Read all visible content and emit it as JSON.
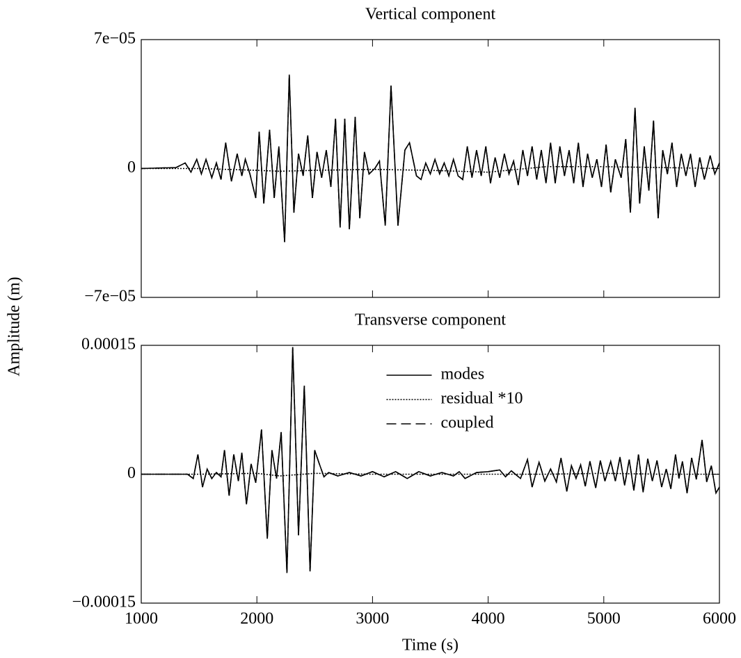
{
  "chart_data": [
    {
      "type": "line",
      "title": "Vertical component",
      "x": [
        1000,
        1300,
        1380,
        1430,
        1480,
        1520,
        1560,
        1610,
        1650,
        1690,
        1730,
        1780,
        1830,
        1870,
        1900,
        1940,
        1990,
        2020,
        2060,
        2110,
        2150,
        2190,
        2240,
        2280,
        2320,
        2360,
        2400,
        2440,
        2480,
        2520,
        2560,
        2600,
        2640,
        2680,
        2720,
        2760,
        2800,
        2850,
        2890,
        2930,
        2970,
        3020,
        3060,
        3110,
        3160,
        3220,
        3280,
        3320,
        3380,
        3420,
        3460,
        3500,
        3540,
        3580,
        3620,
        3660,
        3700,
        3740,
        3780,
        3820,
        3860,
        3900,
        3940,
        3980,
        4020,
        4060,
        4100,
        4140,
        4180,
        4220,
        4260,
        4300,
        4340,
        4380,
        4420,
        4460,
        4500,
        4540,
        4580,
        4620,
        4660,
        4700,
        4740,
        4780,
        4820,
        4860,
        4900,
        4940,
        4980,
        5020,
        5060,
        5100,
        5150,
        5190,
        5230,
        5270,
        5310,
        5350,
        5390,
        5430,
        5470,
        5510,
        5550,
        5590,
        5630,
        5670,
        5710,
        5750,
        5790,
        5830,
        5870,
        5920,
        5960,
        6000
      ],
      "series": [
        {
          "name": "modes",
          "color": "#000000",
          "linestyle": "solid",
          "values": [
            0,
            5e-07,
            3e-06,
            -2e-06,
            5e-06,
            -3e-06,
            5e-06,
            -5e-06,
            3e-06,
            -6e-06,
            1.4e-05,
            -7e-06,
            8e-06,
            -4e-06,
            5e-06,
            -3e-06,
            -1.6e-05,
            2e-05,
            -1.9e-05,
            2.1e-05,
            -1.6e-05,
            1.2e-05,
            -4e-05,
            5.1e-05,
            -2.4e-05,
            8e-06,
            -4e-06,
            1.8e-05,
            -1.6e-05,
            9e-06,
            -5e-06,
            1e-05,
            -1e-05,
            2.7e-05,
            -3.2e-05,
            2.7e-05,
            -3.3e-05,
            2.8e-05,
            -2.7e-05,
            9e-06,
            -3e-06,
            0,
            4e-06,
            -3.1e-05,
            4.5e-05,
            -3.1e-05,
            1e-05,
            1.4e-05,
            -4e-06,
            -6e-06,
            3e-06,
            -3e-06,
            5e-06,
            -3e-06,
            3e-06,
            -4e-06,
            5e-06,
            -4e-06,
            -6e-06,
            1.2e-05,
            -5e-06,
            1e-05,
            -4e-06,
            1.2e-05,
            -8e-06,
            6e-06,
            -5e-06,
            8e-06,
            -3e-06,
            4e-06,
            -9e-06,
            1e-05,
            -4e-06,
            1.2e-05,
            -6e-06,
            1e-05,
            -8e-06,
            1.4e-05,
            -8e-06,
            1.2e-05,
            -4e-06,
            1e-05,
            -8e-06,
            1.4e-05,
            -1e-05,
            8e-06,
            -5e-06,
            5e-06,
            -1e-05,
            1.3e-05,
            -1.3e-05,
            5e-06,
            -5e-06,
            1.6e-05,
            -2.4e-05,
            3.3e-05,
            -1.9e-05,
            1.2e-05,
            -1.2e-05,
            2.6e-05,
            -2.7e-05,
            1e-05,
            -3e-06,
            1.4e-05,
            -1e-05,
            8e-06,
            -4e-06,
            8e-06,
            -1e-05,
            6e-06,
            -6e-06,
            7e-06,
            -3e-06,
            3e-06
          ]
        },
        {
          "name": "residual *10",
          "color": "#000000",
          "linestyle": "dotted",
          "x": [
            1000,
            1500,
            2000,
            2200,
            2500,
            3000,
            3500,
            4000,
            4500,
            5000,
            5500,
            6000
          ],
          "values": [
            0,
            0,
            -1e-06,
            -1.5e-06,
            -1e-06,
            -5e-07,
            -1e-06,
            -2e-06,
            1e-06,
            1e-06,
            5e-07,
            0
          ]
        },
        {
          "name": "coupled",
          "color": "#000000",
          "linestyle": "dashed",
          "values": [
            0,
            5e-07,
            3e-06,
            -2e-06,
            5e-06,
            -3e-06,
            5e-06,
            -5e-06,
            3e-06,
            -6e-06,
            1.4e-05,
            -7e-06,
            8e-06,
            -4e-06,
            5e-06,
            -3e-06,
            -1.6e-05,
            2e-05,
            -1.9e-05,
            2.1e-05,
            -1.6e-05,
            1.2e-05,
            -4e-05,
            5.1e-05,
            -2.4e-05,
            8e-06,
            -4e-06,
            1.8e-05,
            -1.6e-05,
            9e-06,
            -5e-06,
            1e-05,
            -1e-05,
            2.7e-05,
            -3.2e-05,
            2.7e-05,
            -3.3e-05,
            2.8e-05,
            -2.7e-05,
            9e-06,
            -3e-06,
            0,
            4e-06,
            -3.1e-05,
            4.5e-05,
            -3.1e-05,
            1e-05,
            1.4e-05,
            -4e-06,
            -6e-06,
            3e-06,
            -3e-06,
            5e-06,
            -3e-06,
            3e-06,
            -4e-06,
            5e-06,
            -4e-06,
            -6e-06,
            1.2e-05,
            -5e-06,
            1e-05,
            -4e-06,
            1.2e-05,
            -8e-06,
            6e-06,
            -5e-06,
            8e-06,
            -3e-06,
            4e-06,
            -9e-06,
            1e-05,
            -4e-06,
            1.2e-05,
            -6e-06,
            1e-05,
            -8e-06,
            1.4e-05,
            -8e-06,
            1.2e-05,
            -4e-06,
            1e-05,
            -8e-06,
            1.4e-05,
            -1e-05,
            8e-06,
            -5e-06,
            5e-06,
            -1e-05,
            1.3e-05,
            -1.3e-05,
            5e-06,
            -5e-06,
            1.6e-05,
            -2.4e-05,
            3.3e-05,
            -1.9e-05,
            1.2e-05,
            -1.2e-05,
            2.6e-05,
            -2.7e-05,
            1e-05,
            -3e-06,
            1.4e-05,
            -1e-05,
            8e-06,
            -4e-06,
            8e-06,
            -1e-05,
            6e-06,
            -6e-06,
            7e-06,
            -3e-06,
            3e-06
          ]
        }
      ],
      "xlim": [
        1000,
        6000
      ],
      "xticks": [
        1000,
        2000,
        3000,
        4000,
        5000,
        6000
      ],
      "xtick_labels": false,
      "ylim": [
        -7e-05,
        7e-05
      ],
      "yticks": [
        {
          "value": 7e-05,
          "label": "7e−05"
        },
        0,
        {
          "value": -7e-05,
          "label": "−7e−05"
        }
      ]
    },
    {
      "type": "line",
      "title": "Transverse component",
      "xlabel": "Time (s)",
      "ylabel": "Amplitude (m)",
      "x": [
        1000,
        1400,
        1450,
        1490,
        1530,
        1570,
        1610,
        1650,
        1690,
        1720,
        1760,
        1800,
        1840,
        1870,
        1910,
        1950,
        1990,
        2040,
        2090,
        2130,
        2170,
        2210,
        2260,
        2310,
        2360,
        2410,
        2460,
        2500,
        2540,
        2580,
        2620,
        2700,
        2800,
        2900,
        3000,
        3100,
        3200,
        3300,
        3400,
        3500,
        3600,
        3700,
        3750,
        3800,
        3900,
        4000,
        4100,
        4150,
        4200,
        4280,
        4340,
        4380,
        4440,
        4490,
        4540,
        4590,
        4630,
        4680,
        4720,
        4760,
        4800,
        4840,
        4880,
        4930,
        4970,
        5010,
        5060,
        5100,
        5140,
        5180,
        5220,
        5260,
        5300,
        5340,
        5380,
        5420,
        5460,
        5500,
        5540,
        5580,
        5620,
        5650,
        5680,
        5720,
        5760,
        5800,
        5850,
        5890,
        5930,
        5970,
        6000
      ],
      "series": [
        {
          "name": "modes",
          "color": "#000000",
          "linestyle": "solid",
          "values": [
            0,
            0,
            -5e-06,
            2.3e-05,
            -1.5e-05,
            6e-06,
            -5e-06,
            2e-06,
            -3e-06,
            2.8e-05,
            -2.5e-05,
            2.3e-05,
            -8e-06,
            2.5e-05,
            -3.5e-05,
            1.2e-05,
            -1e-05,
            5.2e-05,
            -7.5e-05,
            2.8e-05,
            -5e-06,
            4.9e-05,
            -0.000115,
            0.000148,
            -7.1e-05,
            0.000103,
            -0.000113,
            2.8e-05,
            1.2e-05,
            -3e-06,
            2e-06,
            -2e-06,
            2e-06,
            -2e-06,
            3e-06,
            -3e-06,
            3e-06,
            -5e-06,
            3e-06,
            -2e-06,
            2e-06,
            -2e-06,
            3e-06,
            -5e-06,
            2e-06,
            3e-06,
            5e-06,
            -3e-06,
            4e-06,
            -5e-06,
            1.7e-05,
            -1.5e-05,
            1.4e-05,
            -8e-06,
            6e-06,
            -9e-06,
            1.9e-05,
            -2e-05,
            1e-05,
            -5e-06,
            1.1e-05,
            -1.4e-05,
            1.5e-05,
            -1.6e-05,
            1.6e-05,
            -8e-06,
            1.5e-05,
            -8e-06,
            2e-05,
            -1.3e-05,
            1.7e-05,
            -1.9e-05,
            2.3e-05,
            -2.1e-05,
            1.8e-05,
            -8e-06,
            1.6e-05,
            -1.5e-05,
            6e-06,
            -1.7e-05,
            2.3e-05,
            -5e-06,
            1.5e-05,
            -2.2e-05,
            1.9e-05,
            -6e-06,
            4e-05,
            -9e-06,
            1e-05,
            -2.2e-05,
            -1.5e-05
          ]
        },
        {
          "name": "residual *10",
          "color": "#000000",
          "linestyle": "dotted",
          "x": [
            1000,
            1500,
            2000,
            2200,
            2500,
            3000,
            3500,
            4000,
            4500,
            5000,
            5500,
            6000
          ],
          "values": [
            0,
            0,
            1e-06,
            -2e-06,
            1e-06,
            0,
            0,
            0,
            0,
            1e-06,
            0,
            0
          ]
        },
        {
          "name": "coupled",
          "color": "#000000",
          "linestyle": "dashed",
          "values": [
            0,
            0,
            -5e-06,
            2.3e-05,
            -1.5e-05,
            6e-06,
            -5e-06,
            2e-06,
            -3e-06,
            2.8e-05,
            -2.5e-05,
            2.3e-05,
            -8e-06,
            2.5e-05,
            -3.5e-05,
            1.2e-05,
            -1e-05,
            5.2e-05,
            -7.5e-05,
            2.8e-05,
            -5e-06,
            4.9e-05,
            -0.000115,
            0.000148,
            -7.1e-05,
            0.000103,
            -0.000113,
            2.8e-05,
            1.2e-05,
            -3e-06,
            2e-06,
            -2e-06,
            2e-06,
            -2e-06,
            3e-06,
            -3e-06,
            3e-06,
            -5e-06,
            3e-06,
            -2e-06,
            2e-06,
            -2e-06,
            3e-06,
            -5e-06,
            2e-06,
            3e-06,
            5e-06,
            -3e-06,
            4e-06,
            -5e-06,
            1.7e-05,
            -1.5e-05,
            1.4e-05,
            -8e-06,
            6e-06,
            -9e-06,
            1.9e-05,
            -2e-05,
            1e-05,
            -5e-06,
            1.1e-05,
            -1.4e-05,
            1.5e-05,
            -1.6e-05,
            1.6e-05,
            -8e-06,
            1.5e-05,
            -8e-06,
            2e-05,
            -1.3e-05,
            1.7e-05,
            -1.9e-05,
            2.3e-05,
            -2.1e-05,
            1.8e-05,
            -8e-06,
            1.6e-05,
            -1.5e-05,
            6e-06,
            -1.7e-05,
            2.3e-05,
            -5e-06,
            1.5e-05,
            -2.2e-05,
            1.9e-05,
            -6e-06,
            4e-05,
            -9e-06,
            1e-05,
            -2.2e-05,
            -1.5e-05
          ]
        }
      ],
      "legend": "upper center",
      "xlim": [
        1000,
        6000
      ],
      "xticks": [
        1000,
        2000,
        3000,
        4000,
        5000,
        6000
      ],
      "xtick_labels": true,
      "ylim": [
        -0.00015,
        0.00015
      ],
      "yticks": [
        0.00015,
        0,
        {
          "value": -0.00015,
          "label": "−0.00015"
        }
      ]
    }
  ]
}
